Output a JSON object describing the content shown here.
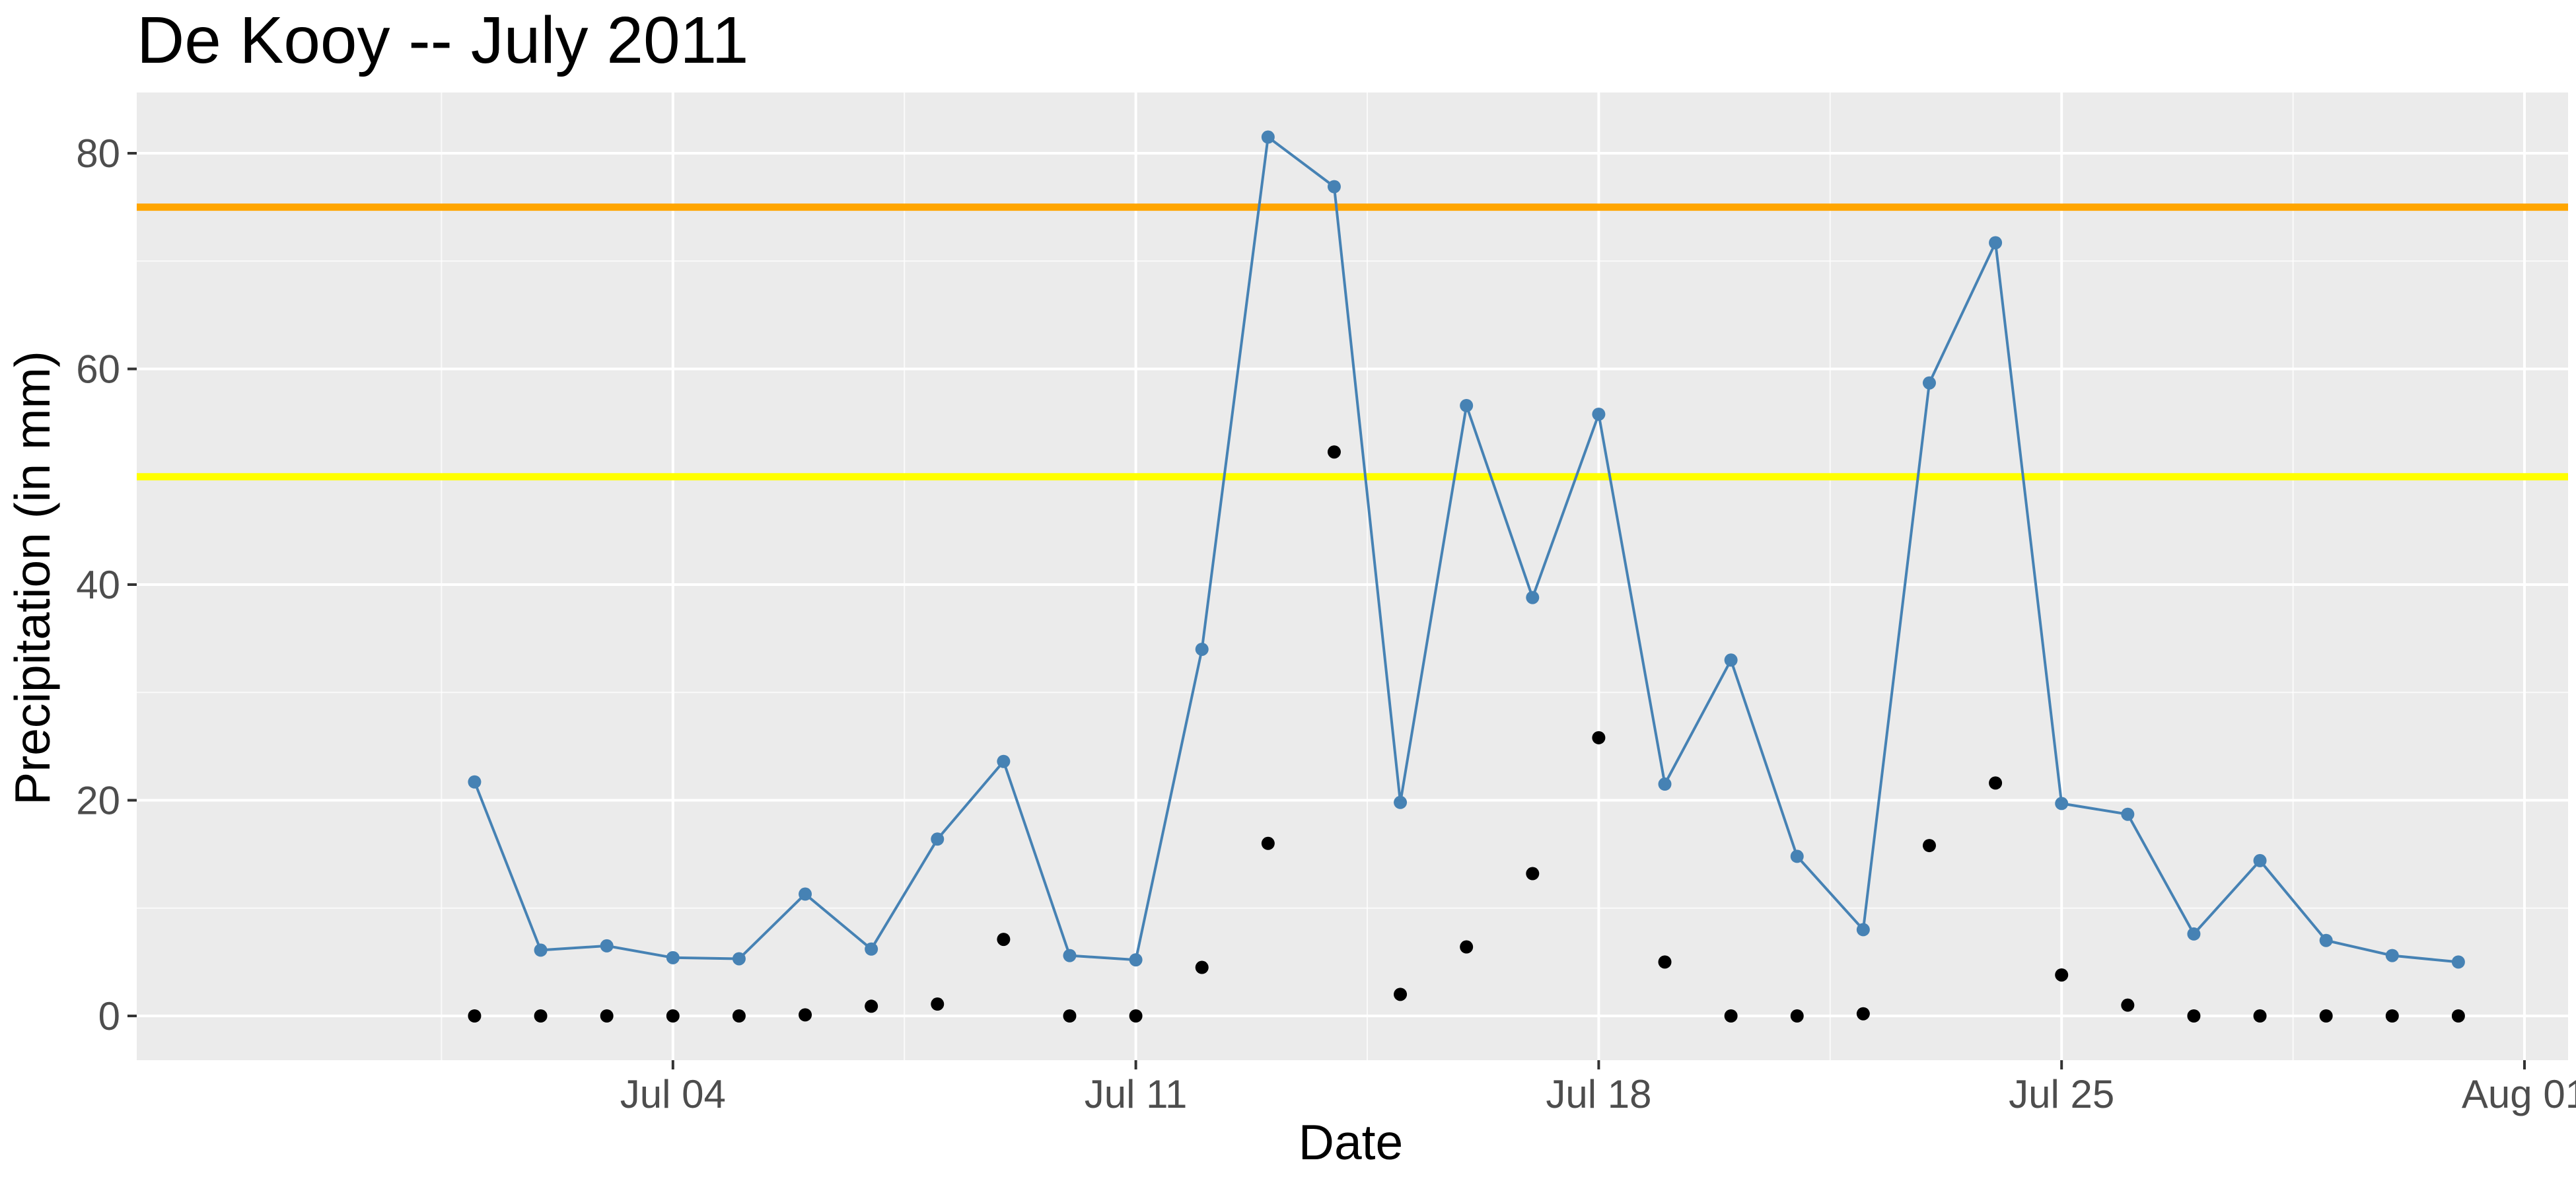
{
  "chart_data": {
    "type": "line",
    "title": "De Kooy -- July 2011",
    "xlabel": "Date",
    "ylabel": "Precipitation (in mm)",
    "x_tick_labels": [
      "Jul 04",
      "Jul 11",
      "Jul 18",
      "Jul 25",
      "Aug 01"
    ],
    "y_tick_labels": [
      "0",
      "20",
      "40",
      "60",
      "80"
    ],
    "ylim": [
      -4,
      85
    ],
    "grid": true,
    "colors": {
      "panel": "#ebebeb",
      "grid_major": "#ffffff",
      "line_series": "#4682b4",
      "point_series": "#000000",
      "hline_75": "#ffa500",
      "hline_50": "#ffff00"
    },
    "x": [
      "2011-07-01",
      "2011-07-02",
      "2011-07-03",
      "2011-07-04",
      "2011-07-05",
      "2011-07-06",
      "2011-07-07",
      "2011-07-08",
      "2011-07-09",
      "2011-07-10",
      "2011-07-11",
      "2011-07-12",
      "2011-07-13",
      "2011-07-14",
      "2011-07-15",
      "2011-07-16",
      "2011-07-17",
      "2011-07-18",
      "2011-07-19",
      "2011-07-20",
      "2011-07-21",
      "2011-07-22",
      "2011-07-23",
      "2011-07-24",
      "2011-07-25",
      "2011-07-26",
      "2011-07-27",
      "2011-07-28",
      "2011-07-29",
      "2011-07-30",
      "2011-07-31"
    ],
    "series": [
      {
        "style": "line+points",
        "values": [
          21.7,
          6.1,
          6.5,
          5.4,
          5.3,
          11.3,
          6.2,
          16.4,
          23.6,
          5.6,
          5.2,
          34.0,
          81.5,
          76.9,
          19.8,
          56.6,
          38.8,
          55.8,
          21.5,
          33.0,
          14.8,
          8.0,
          58.7,
          71.7,
          19.7,
          18.7,
          7.6,
          14.4,
          7.0,
          5.6,
          5.0
        ]
      },
      {
        "style": "points",
        "values": [
          0,
          0,
          0,
          0,
          0,
          0.1,
          0.9,
          1.1,
          7.1,
          0,
          0,
          4.5,
          16.0,
          52.3,
          2.0,
          6.4,
          13.2,
          25.8,
          5.0,
          0,
          0,
          0.2,
          15.8,
          21.6,
          3.8,
          1.0,
          0,
          0,
          0,
          0,
          0
        ]
      }
    ],
    "hlines": [
      75,
      50
    ]
  }
}
